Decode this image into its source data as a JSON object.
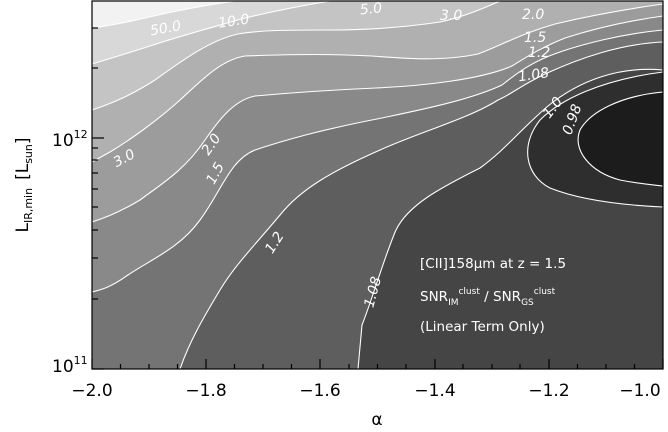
{
  "chart_data": {
    "type": "contour",
    "title": "",
    "xlabel": "α",
    "ylabel": "L_IR,min [L_sun]",
    "xlim": [
      -2.0,
      -1.0
    ],
    "ylim_log10": [
      11.0,
      12.7
    ],
    "x_ticks": [
      "−2.0",
      "−1.8",
      "−1.6",
      "−1.4",
      "−1.2",
      "−1.0"
    ],
    "y_ticks": [
      {
        "value_log10": 11,
        "base": "10",
        "exp": "11"
      },
      {
        "value_log10": 12,
        "base": "10",
        "exp": "12"
      }
    ],
    "ylabel_parts": {
      "L": "L",
      "sub1": "IR,min",
      "open": "[",
      "L2": "L",
      "sub2": "sun",
      "close": "]"
    },
    "contour_levels": [
      "50.0",
      "10.0",
      "5.0",
      "3.0",
      "2.0",
      "1.5",
      "1.2",
      "1.08",
      "1.0",
      "0.98"
    ],
    "contour_labels_shown": [
      "50.0",
      "10.0",
      "5.0",
      "3.0",
      "2.0",
      "1.5",
      "1.2",
      "1.08",
      "1.0",
      "0.98",
      "3.0",
      "2.0",
      "1.5",
      "1.2",
      "1.08"
    ],
    "annotation": {
      "line1": "[CII]158μm at z = 1.5",
      "line2_a": "SNR",
      "line2_a_sub": "IM",
      "line2_a_sup": "clust",
      "line2_sep": " / ",
      "line2_b": "SNR",
      "line2_b_sub": "GS",
      "line2_b_sup": "clust",
      "line3": "(Linear Term Only)"
    },
    "grid": false,
    "colors": {
      "background": "#ffffff",
      "line": "#ffffff",
      "fills": [
        "#f2f2f2",
        "#d8d8d8",
        "#c4c4c4",
        "#b0b0b0",
        "#9c9c9c",
        "#898989",
        "#747474",
        "#5e5e5e",
        "#454545",
        "#2e2e2e",
        "#1c1c1c"
      ]
    }
  }
}
